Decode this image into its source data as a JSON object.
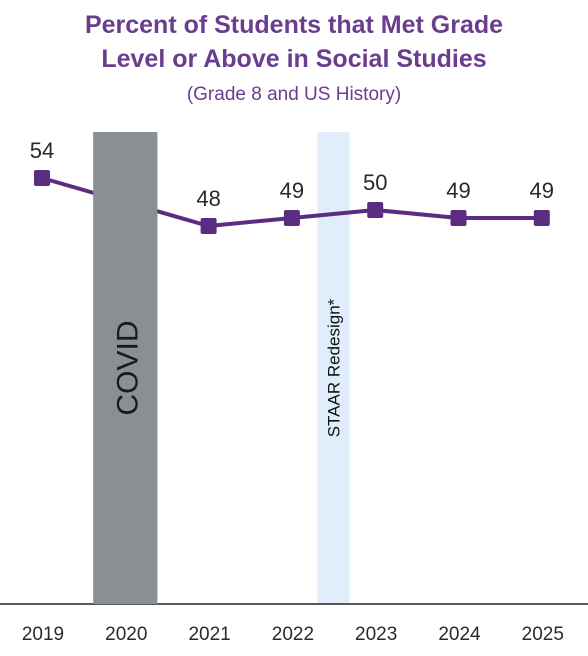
{
  "chart_data": {
    "type": "line",
    "title_line1": "Percent of Students that Met Grade",
    "title_line2": "Level or Above in Social Studies",
    "subtitle": "(Grade 8 and US History)",
    "categories": [
      "2019",
      "2020",
      "2021",
      "2022",
      "2023",
      "2024",
      "2025"
    ],
    "series": [
      {
        "values": [
          54,
          null,
          48,
          49,
          50,
          49,
          49
        ],
        "color": "#5b2d82"
      }
    ],
    "data_labels": [
      "54",
      "",
      "48",
      "49",
      "50",
      "49",
      "49"
    ],
    "ylim": [
      0,
      60
    ],
    "grid": false,
    "annotations": [
      {
        "label": "COVID",
        "at": "2020",
        "color": "#8a8f94",
        "text_color": "#1a1a1a"
      },
      {
        "label": "STAAR Redesign*",
        "at": "2022.5",
        "color": "#dfeefa",
        "text_color": "#111111"
      }
    ],
    "colors": {
      "title": "#6a3d8f",
      "axis": "#555a5e",
      "tick_text": "#2a2a2a"
    }
  }
}
